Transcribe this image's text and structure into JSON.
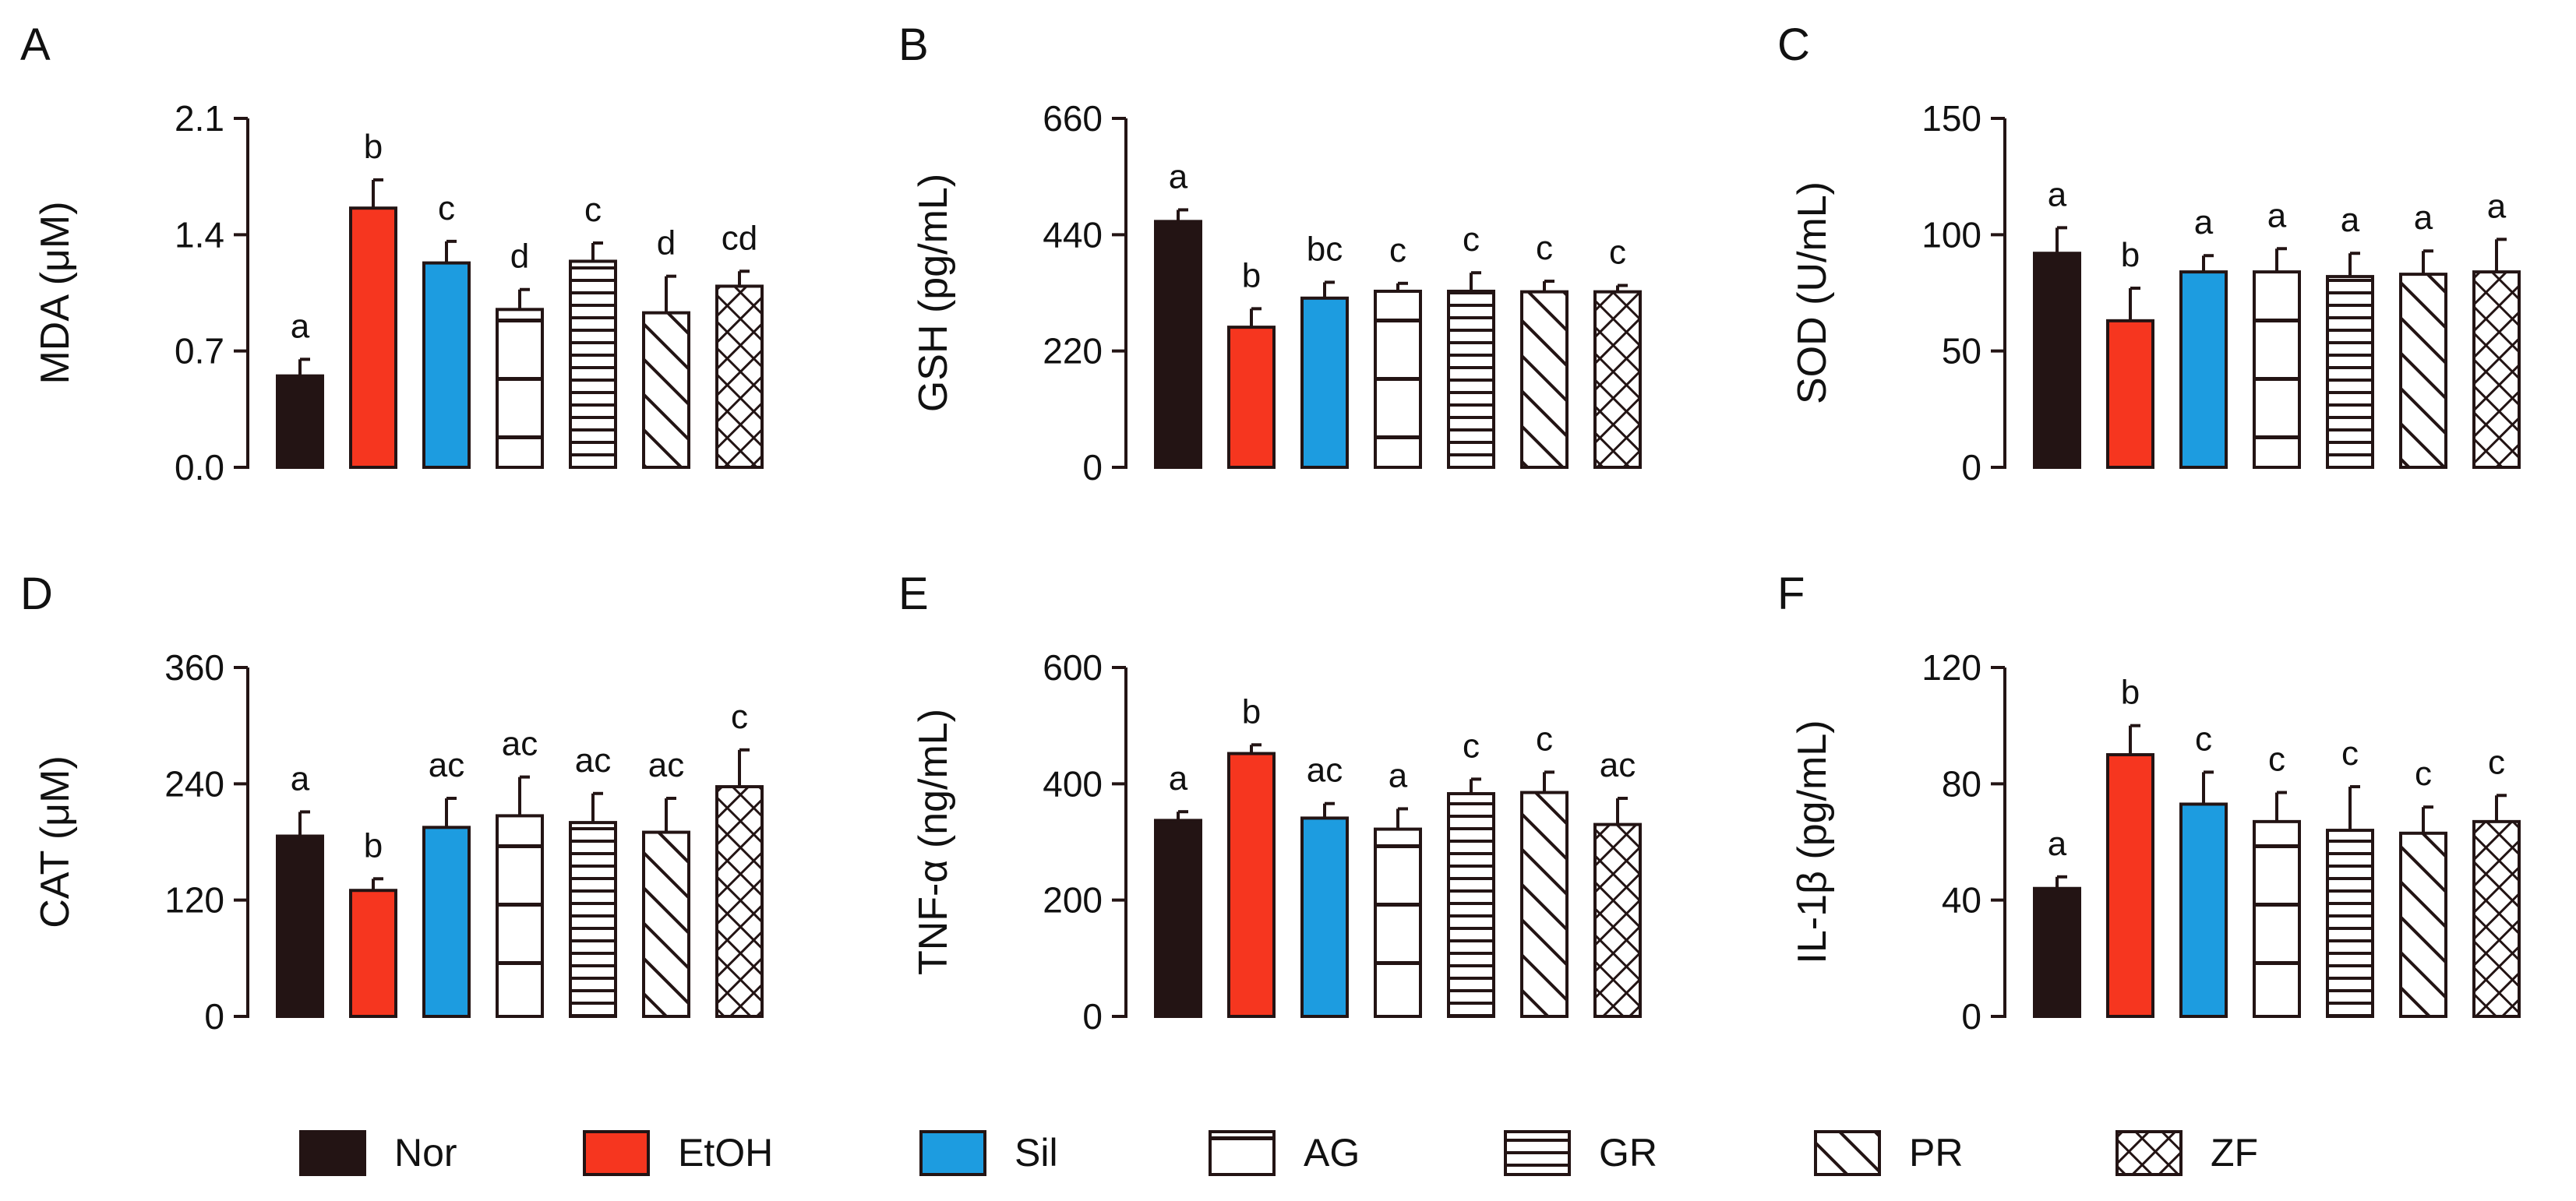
{
  "groups": [
    {
      "name": "Nor",
      "pattern": "solid",
      "color": "#231414"
    },
    {
      "name": "EtOH",
      "pattern": "solid",
      "color": "#f6361f"
    },
    {
      "name": "Sil",
      "pattern": "solid",
      "color": "#1d9ce0"
    },
    {
      "name": "AG",
      "pattern": "hlines-wide"
    },
    {
      "name": "GR",
      "pattern": "hlines-dense"
    },
    {
      "name": "PR",
      "pattern": "diagonal"
    },
    {
      "name": "ZF",
      "pattern": "crosshatch"
    }
  ],
  "chart_data": [
    {
      "type": "bar",
      "letter": "A",
      "ylabel": "MDA (μM)",
      "ylim": [
        0,
        2.1
      ],
      "ticks": [
        "0.0",
        "0.7",
        "1.4",
        "2.1"
      ],
      "categories": [
        "Nor",
        "EtOH",
        "Sil",
        "AG",
        "GR",
        "PR",
        "ZF"
      ],
      "values": [
        0.55,
        1.56,
        1.23,
        0.95,
        1.24,
        0.93,
        1.09
      ],
      "errors": [
        0.1,
        0.17,
        0.13,
        0.12,
        0.11,
        0.22,
        0.09
      ],
      "sig": [
        "a",
        "b",
        "c",
        "d",
        "c",
        "d",
        "cd"
      ]
    },
    {
      "type": "bar",
      "letter": "B",
      "ylabel": "GSH (pg/mL)",
      "ylim": [
        0,
        660
      ],
      "ticks": [
        "0",
        "220",
        "440",
        "660"
      ],
      "categories": [
        "Nor",
        "EtOH",
        "Sil",
        "AG",
        "GR",
        "PR",
        "ZF"
      ],
      "values": [
        465,
        265,
        320,
        333,
        333,
        332,
        332
      ],
      "errors": [
        22,
        35,
        30,
        15,
        35,
        20,
        12
      ],
      "sig": [
        "a",
        "b",
        "bc",
        "c",
        "c",
        "c",
        "c"
      ]
    },
    {
      "type": "bar",
      "letter": "C",
      "ylabel": "SOD (U/mL)",
      "ylim": [
        0,
        150
      ],
      "ticks": [
        "0",
        "50",
        "100",
        "150"
      ],
      "categories": [
        "Nor",
        "EtOH",
        "Sil",
        "AG",
        "GR",
        "PR",
        "ZF"
      ],
      "values": [
        92,
        63,
        84,
        84,
        82,
        83,
        84
      ],
      "errors": [
        11,
        14,
        7,
        10,
        10,
        10,
        14
      ],
      "sig": [
        "a",
        "b",
        "a",
        "a",
        "a",
        "a",
        "a"
      ]
    },
    {
      "type": "bar",
      "letter": "D",
      "ylabel": "CAT (μM)",
      "ylim": [
        0,
        360
      ],
      "ticks": [
        "0",
        "120",
        "240",
        "360"
      ],
      "categories": [
        "Nor",
        "EtOH",
        "Sil",
        "AG",
        "GR",
        "PR",
        "ZF"
      ],
      "values": [
        186,
        130,
        195,
        207,
        200,
        190,
        237
      ],
      "errors": [
        25,
        12,
        30,
        40,
        30,
        35,
        38
      ],
      "sig": [
        "a",
        "b",
        "ac",
        "ac",
        "ac",
        "ac",
        "c"
      ]
    },
    {
      "type": "bar",
      "letter": "E",
      "ylabel": "TNF-α (ng/mL)",
      "ylim": [
        0,
        600
      ],
      "ticks": [
        "0",
        "200",
        "400",
        "600"
      ],
      "categories": [
        "Nor",
        "EtOH",
        "Sil",
        "AG",
        "GR",
        "PR",
        "ZF"
      ],
      "values": [
        337,
        452,
        341,
        322,
        383,
        385,
        330
      ],
      "errors": [
        15,
        15,
        25,
        35,
        25,
        35,
        45
      ],
      "sig": [
        "a",
        "b",
        "ac",
        "a",
        "c",
        "c",
        "ac"
      ]
    },
    {
      "type": "bar",
      "letter": "F",
      "ylabel": "IL-1β (pg/mL)",
      "ylim": [
        0,
        120
      ],
      "ticks": [
        "0",
        "40",
        "80",
        "120"
      ],
      "categories": [
        "Nor",
        "EtOH",
        "Sil",
        "AG",
        "GR",
        "PR",
        "ZF"
      ],
      "values": [
        44,
        90,
        73,
        67,
        64,
        63,
        67
      ],
      "errors": [
        4,
        10,
        11,
        10,
        15,
        9,
        9
      ],
      "sig": [
        "a",
        "b",
        "c",
        "c",
        "c",
        "c",
        "c"
      ]
    }
  ]
}
